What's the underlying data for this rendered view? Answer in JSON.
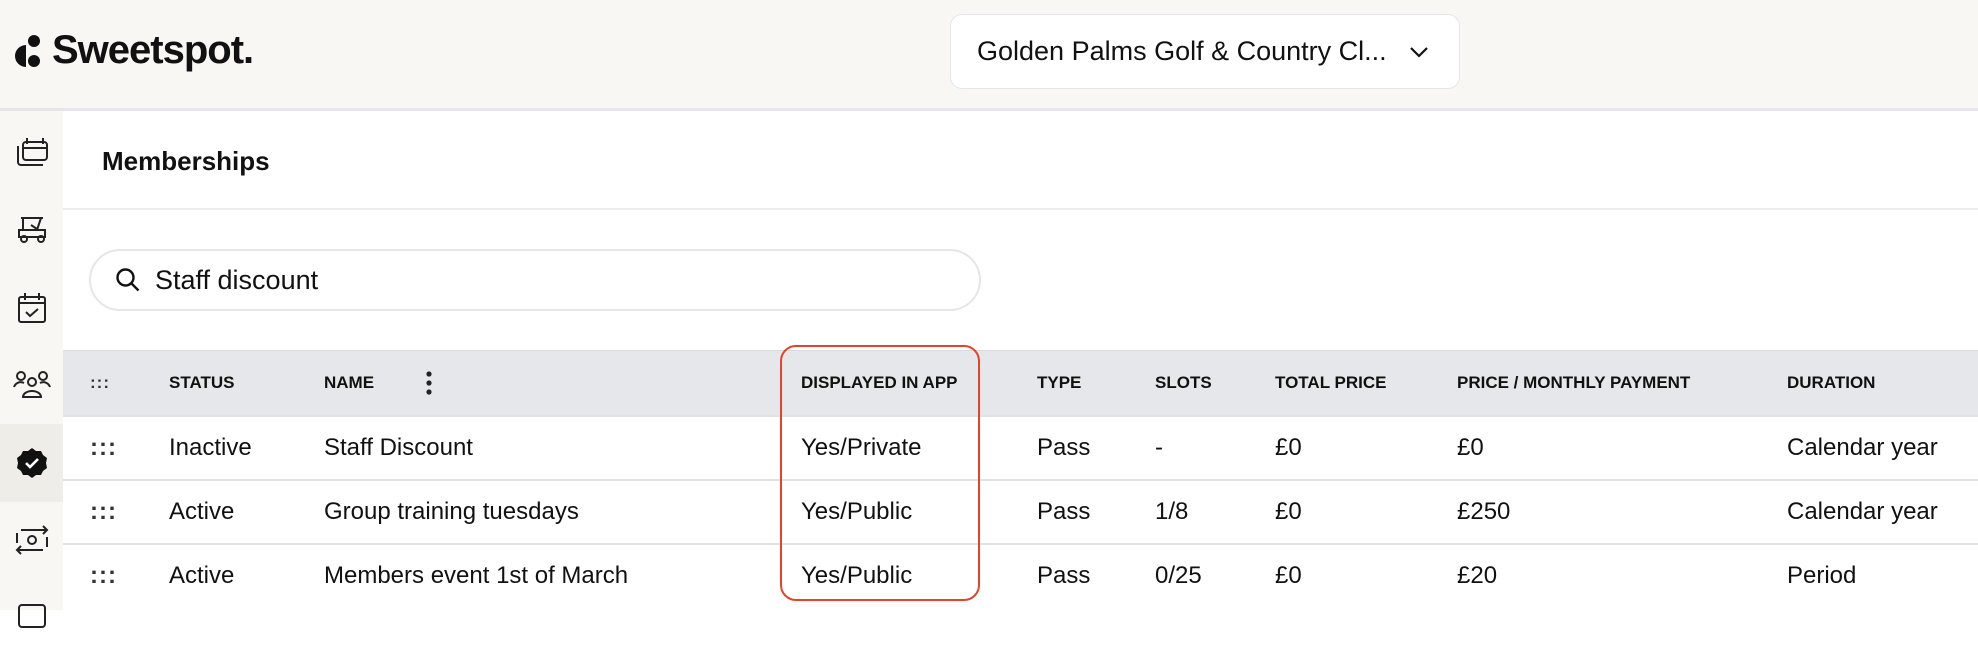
{
  "header": {
    "logo_text": "Sweetspot.",
    "club_selector": "Golden Palms Golf & Country Cl..."
  },
  "sidebar": {
    "items": [
      {
        "icon": "calendar-stack-icon"
      },
      {
        "icon": "golf-cart-icon"
      },
      {
        "icon": "calendar-check-icon"
      },
      {
        "icon": "users-icon"
      },
      {
        "icon": "badge-check-icon",
        "active": true
      },
      {
        "icon": "money-transfer-icon"
      },
      {
        "icon": "card-icon"
      }
    ]
  },
  "main": {
    "title": "Memberships",
    "search": {
      "value": "Staff discount"
    }
  },
  "table": {
    "drag_handle": ":::",
    "columns": [
      "STATUS",
      "NAME",
      "DISPLAYED IN APP",
      "TYPE",
      "SLOTS",
      "TOTAL PRICE",
      "PRICE / MONTHLY PAYMENT",
      "DURATION"
    ],
    "rows": [
      [
        "Inactive",
        "Staff Discount",
        "Yes/Private",
        "Pass",
        "-",
        "£0",
        "£0",
        "Calendar year"
      ],
      [
        "Active",
        "Group training tuesdays",
        "Yes/Public",
        "Pass",
        "1/8",
        "£0",
        "£250",
        "Calendar year"
      ],
      [
        "Active",
        "Members event 1st of March",
        "Yes/Public",
        "Pass",
        "0/25",
        "£0",
        "£20",
        "Period"
      ]
    ],
    "highlight_color": "#e5432a"
  }
}
